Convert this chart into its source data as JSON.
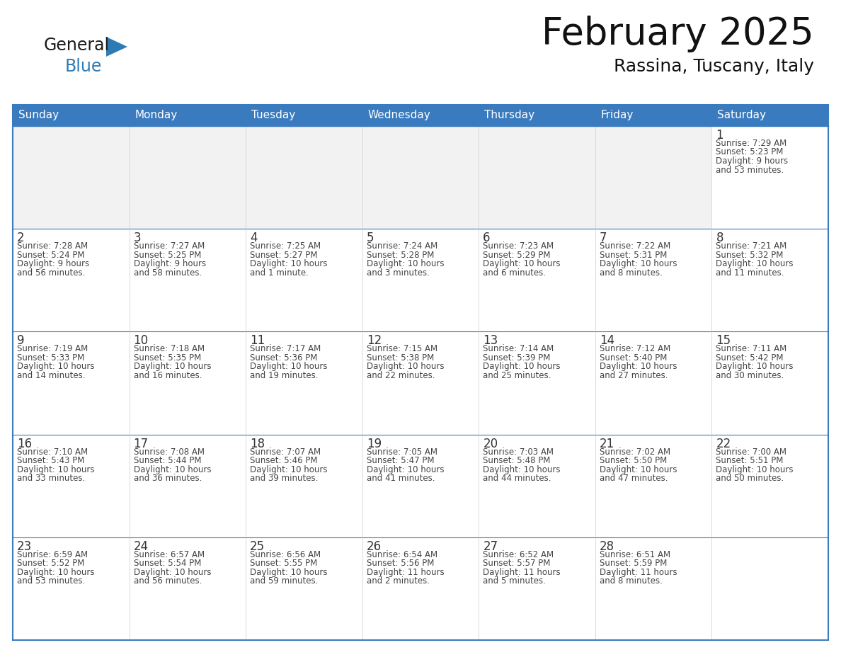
{
  "title": "February 2025",
  "subtitle": "Rassina, Tuscany, Italy",
  "header_bg_color": "#3A7BBF",
  "header_text_color": "#FFFFFF",
  "cell_border_color": "#3A7BBF",
  "day_number_color": "#333333",
  "text_color": "#444444",
  "bg_color": "#FFFFFF",
  "days_of_week": [
    "Sunday",
    "Monday",
    "Tuesday",
    "Wednesday",
    "Thursday",
    "Friday",
    "Saturday"
  ],
  "weeks": [
    [
      {
        "day": "",
        "sunrise": "",
        "sunset": "",
        "daylight": ""
      },
      {
        "day": "",
        "sunrise": "",
        "sunset": "",
        "daylight": ""
      },
      {
        "day": "",
        "sunrise": "",
        "sunset": "",
        "daylight": ""
      },
      {
        "day": "",
        "sunrise": "",
        "sunset": "",
        "daylight": ""
      },
      {
        "day": "",
        "sunrise": "",
        "sunset": "",
        "daylight": ""
      },
      {
        "day": "",
        "sunrise": "",
        "sunset": "",
        "daylight": ""
      },
      {
        "day": "1",
        "sunrise": "7:29 AM",
        "sunset": "5:23 PM",
        "daylight": "9 hours\nand 53 minutes."
      }
    ],
    [
      {
        "day": "2",
        "sunrise": "7:28 AM",
        "sunset": "5:24 PM",
        "daylight": "9 hours\nand 56 minutes."
      },
      {
        "day": "3",
        "sunrise": "7:27 AM",
        "sunset": "5:25 PM",
        "daylight": "9 hours\nand 58 minutes."
      },
      {
        "day": "4",
        "sunrise": "7:25 AM",
        "sunset": "5:27 PM",
        "daylight": "10 hours\nand 1 minute."
      },
      {
        "day": "5",
        "sunrise": "7:24 AM",
        "sunset": "5:28 PM",
        "daylight": "10 hours\nand 3 minutes."
      },
      {
        "day": "6",
        "sunrise": "7:23 AM",
        "sunset": "5:29 PM",
        "daylight": "10 hours\nand 6 minutes."
      },
      {
        "day": "7",
        "sunrise": "7:22 AM",
        "sunset": "5:31 PM",
        "daylight": "10 hours\nand 8 minutes."
      },
      {
        "day": "8",
        "sunrise": "7:21 AM",
        "sunset": "5:32 PM",
        "daylight": "10 hours\nand 11 minutes."
      }
    ],
    [
      {
        "day": "9",
        "sunrise": "7:19 AM",
        "sunset": "5:33 PM",
        "daylight": "10 hours\nand 14 minutes."
      },
      {
        "day": "10",
        "sunrise": "7:18 AM",
        "sunset": "5:35 PM",
        "daylight": "10 hours\nand 16 minutes."
      },
      {
        "day": "11",
        "sunrise": "7:17 AM",
        "sunset": "5:36 PM",
        "daylight": "10 hours\nand 19 minutes."
      },
      {
        "day": "12",
        "sunrise": "7:15 AM",
        "sunset": "5:38 PM",
        "daylight": "10 hours\nand 22 minutes."
      },
      {
        "day": "13",
        "sunrise": "7:14 AM",
        "sunset": "5:39 PM",
        "daylight": "10 hours\nand 25 minutes."
      },
      {
        "day": "14",
        "sunrise": "7:12 AM",
        "sunset": "5:40 PM",
        "daylight": "10 hours\nand 27 minutes."
      },
      {
        "day": "15",
        "sunrise": "7:11 AM",
        "sunset": "5:42 PM",
        "daylight": "10 hours\nand 30 minutes."
      }
    ],
    [
      {
        "day": "16",
        "sunrise": "7:10 AM",
        "sunset": "5:43 PM",
        "daylight": "10 hours\nand 33 minutes."
      },
      {
        "day": "17",
        "sunrise": "7:08 AM",
        "sunset": "5:44 PM",
        "daylight": "10 hours\nand 36 minutes."
      },
      {
        "day": "18",
        "sunrise": "7:07 AM",
        "sunset": "5:46 PM",
        "daylight": "10 hours\nand 39 minutes."
      },
      {
        "day": "19",
        "sunrise": "7:05 AM",
        "sunset": "5:47 PM",
        "daylight": "10 hours\nand 41 minutes."
      },
      {
        "day": "20",
        "sunrise": "7:03 AM",
        "sunset": "5:48 PM",
        "daylight": "10 hours\nand 44 minutes."
      },
      {
        "day": "21",
        "sunrise": "7:02 AM",
        "sunset": "5:50 PM",
        "daylight": "10 hours\nand 47 minutes."
      },
      {
        "day": "22",
        "sunrise": "7:00 AM",
        "sunset": "5:51 PM",
        "daylight": "10 hours\nand 50 minutes."
      }
    ],
    [
      {
        "day": "23",
        "sunrise": "6:59 AM",
        "sunset": "5:52 PM",
        "daylight": "10 hours\nand 53 minutes."
      },
      {
        "day": "24",
        "sunrise": "6:57 AM",
        "sunset": "5:54 PM",
        "daylight": "10 hours\nand 56 minutes."
      },
      {
        "day": "25",
        "sunrise": "6:56 AM",
        "sunset": "5:55 PM",
        "daylight": "10 hours\nand 59 minutes."
      },
      {
        "day": "26",
        "sunrise": "6:54 AM",
        "sunset": "5:56 PM",
        "daylight": "11 hours\nand 2 minutes."
      },
      {
        "day": "27",
        "sunrise": "6:52 AM",
        "sunset": "5:57 PM",
        "daylight": "11 hours\nand 5 minutes."
      },
      {
        "day": "28",
        "sunrise": "6:51 AM",
        "sunset": "5:59 PM",
        "daylight": "11 hours\nand 8 minutes."
      },
      {
        "day": "",
        "sunrise": "",
        "sunset": "",
        "daylight": ""
      }
    ]
  ],
  "logo_text_general": "General",
  "logo_text_blue": "Blue",
  "logo_color_black": "#1a1a1a",
  "logo_color_blue": "#2E7AB5",
  "title_fontsize": 38,
  "subtitle_fontsize": 18,
  "header_fontsize": 11,
  "day_number_fontsize": 12,
  "cell_text_fontsize": 8.5
}
